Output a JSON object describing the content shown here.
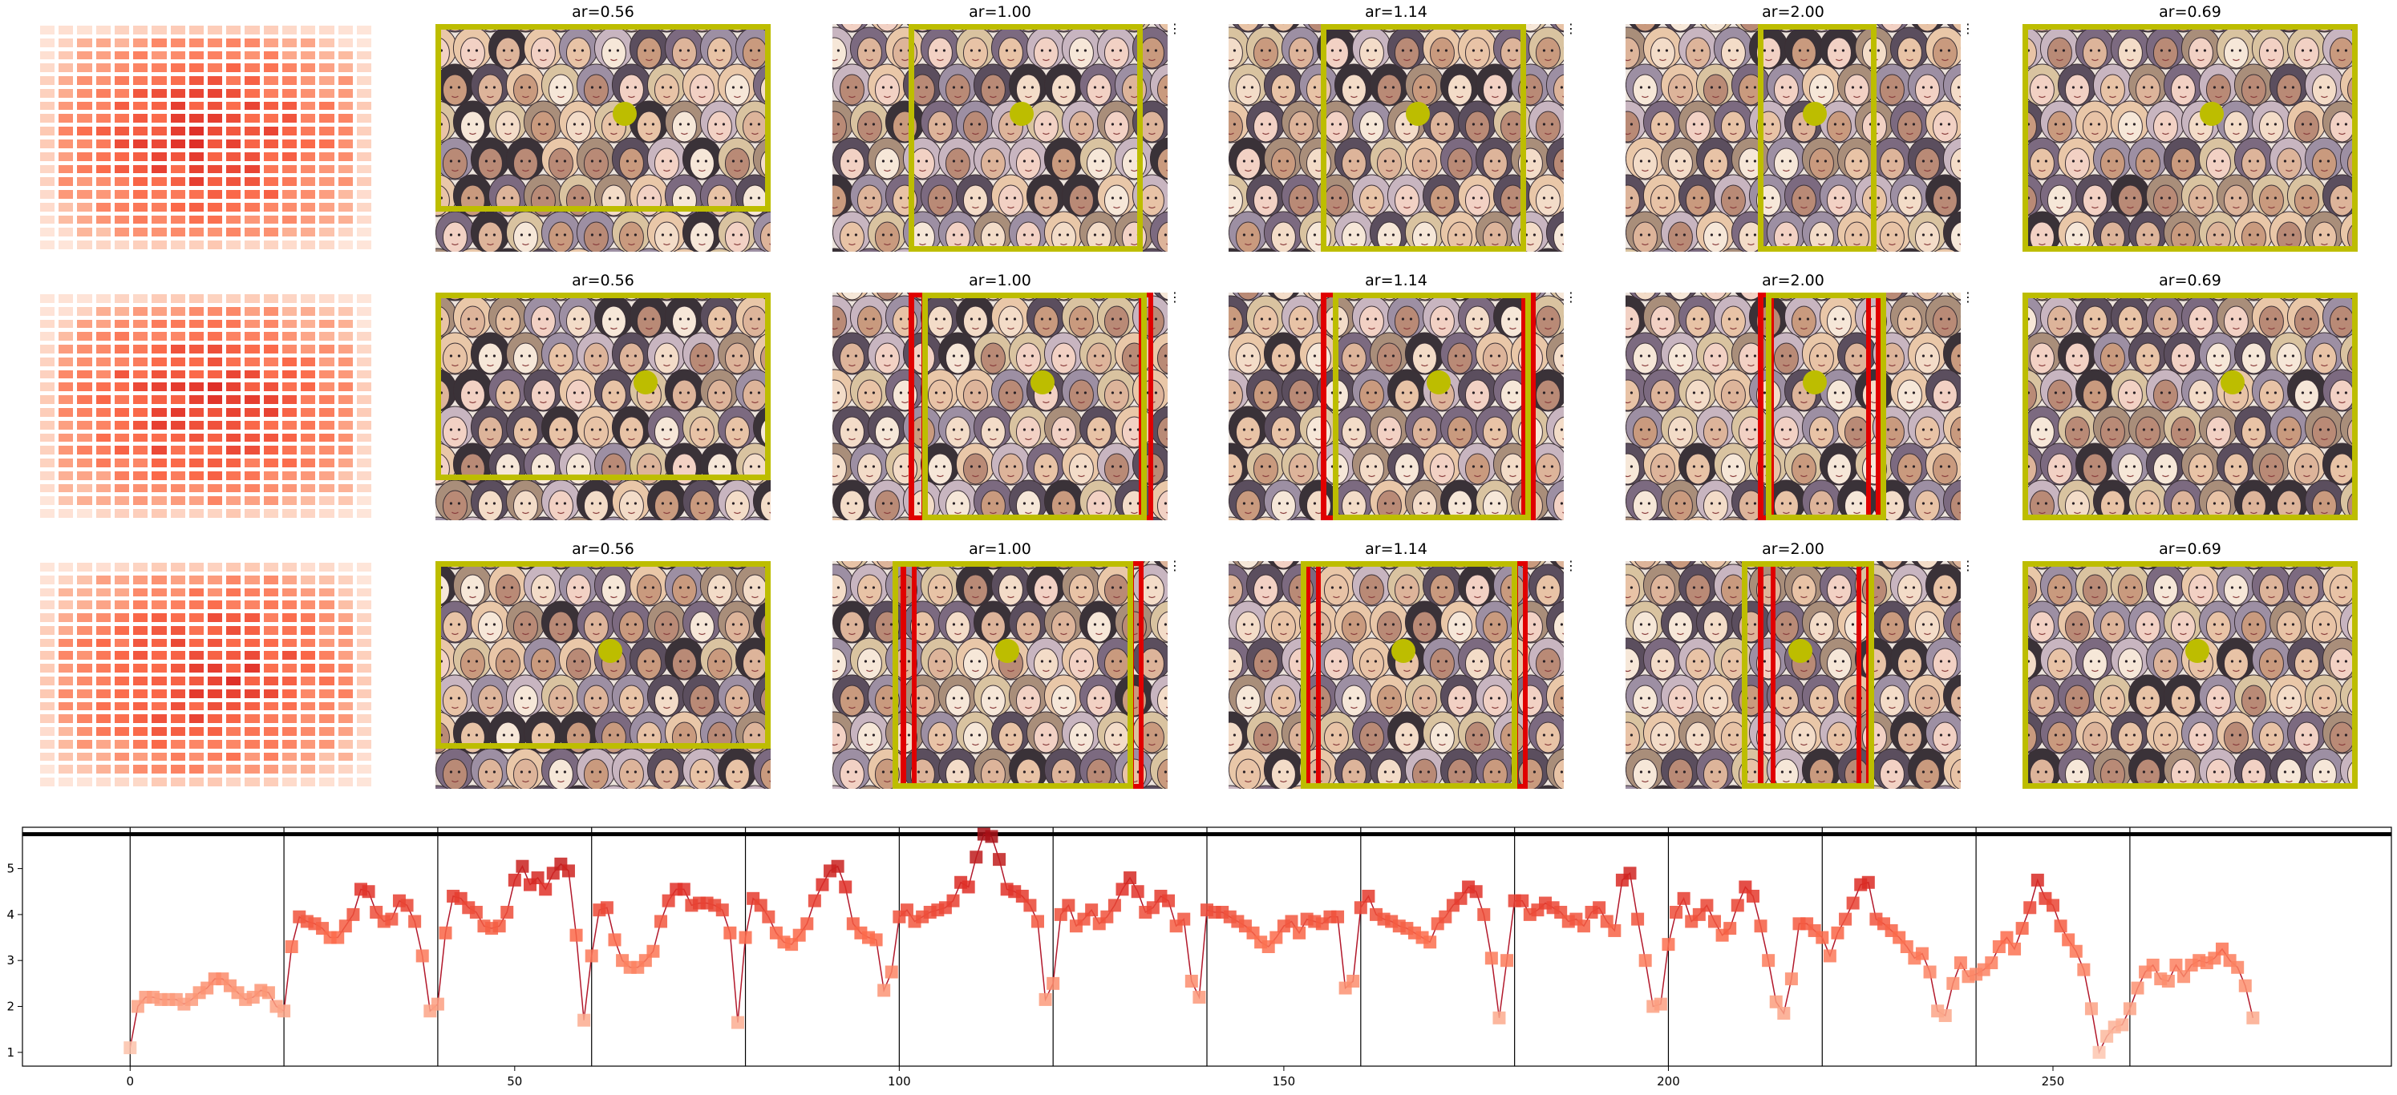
{
  "grid": {
    "rows": [
      {
        "heatmap_icon": "attention-grid",
        "panels": [
          {
            "title": "ar=0.56",
            "boxes": [
              {
                "color": "#bdbd00",
                "role": "crop"
              }
            ]
          },
          {
            "title": "ar=1.00",
            "boxes": [
              {
                "color": "#bdbd00",
                "role": "crop"
              }
            ]
          },
          {
            "title": "ar=1.14",
            "boxes": [
              {
                "color": "#bdbd00",
                "role": "crop"
              }
            ]
          },
          {
            "title": "ar=2.00",
            "boxes": [
              {
                "color": "#bdbd00",
                "role": "crop"
              }
            ]
          },
          {
            "title": "ar=0.69",
            "boxes": [
              {
                "color": "#bdbd00",
                "role": "crop"
              }
            ]
          }
        ]
      },
      {
        "heatmap_icon": "attention-grid",
        "panels": [
          {
            "title": "ar=0.56",
            "boxes": [
              {
                "color": "#bdbd00",
                "role": "crop"
              }
            ]
          },
          {
            "title": "ar=1.00",
            "boxes": [
              {
                "color": "#e00000",
                "role": "reference"
              },
              {
                "color": "#bdbd00",
                "role": "crop"
              }
            ]
          },
          {
            "title": "ar=1.14",
            "boxes": [
              {
                "color": "#e00000",
                "role": "reference"
              },
              {
                "color": "#bdbd00",
                "role": "crop"
              }
            ]
          },
          {
            "title": "ar=2.00",
            "boxes": [
              {
                "color": "#e00000",
                "role": "reference"
              },
              {
                "color": "#bdbd00",
                "role": "crop"
              }
            ]
          },
          {
            "title": "ar=0.69",
            "boxes": [
              {
                "color": "#bdbd00",
                "role": "crop"
              }
            ]
          }
        ]
      },
      {
        "heatmap_icon": "attention-grid",
        "panels": [
          {
            "title": "ar=0.56",
            "boxes": [
              {
                "color": "#bdbd00",
                "role": "crop"
              }
            ]
          },
          {
            "title": "ar=1.00",
            "boxes": [
              {
                "color": "#e00000",
                "role": "reference"
              },
              {
                "color": "#bdbd00",
                "role": "crop"
              }
            ]
          },
          {
            "title": "ar=1.14",
            "boxes": [
              {
                "color": "#e00000",
                "role": "reference"
              },
              {
                "color": "#bdbd00",
                "role": "crop"
              }
            ]
          },
          {
            "title": "ar=2.00",
            "boxes": [
              {
                "color": "#e00000",
                "role": "reference"
              },
              {
                "color": "#bdbd00",
                "role": "crop"
              }
            ]
          },
          {
            "title": "ar=0.69",
            "boxes": [
              {
                "color": "#bdbd00",
                "role": "crop"
              }
            ]
          }
        ]
      }
    ],
    "kebab_glyph": "⋮",
    "colors": {
      "crop": "#bdbd00",
      "reference": "#e00000",
      "marker": "#bdbd00"
    }
  },
  "chart_data": {
    "type": "line",
    "xlabel": "",
    "ylabel": "",
    "xlim": [
      -14,
      294
    ],
    "ylim": [
      0.7,
      5.9
    ],
    "xticks": [
      0,
      50,
      100,
      150,
      200,
      250
    ],
    "yticks": [
      1,
      2,
      3,
      4,
      5
    ],
    "separators": [
      0,
      20,
      40,
      60,
      80,
      100,
      120,
      140,
      160,
      180,
      200,
      220,
      240,
      260
    ],
    "reference_line": 5.75,
    "grid": false,
    "color_map": "reds",
    "series": [
      {
        "values": [
          1.1,
          2.0,
          2.2,
          2.2,
          2.15,
          2.15,
          2.15,
          2.05,
          2.15,
          2.3,
          2.4,
          2.6,
          2.6,
          2.45,
          2.3,
          2.15,
          2.2,
          2.35,
          2.3,
          2.0,
          1.9,
          3.3,
          3.95,
          3.85,
          3.8,
          3.7,
          3.5,
          3.5,
          3.75,
          4.0,
          4.55,
          4.5,
          4.05,
          3.85,
          3.9,
          4.3,
          4.2,
          3.85,
          3.1,
          1.9,
          2.05,
          3.6,
          4.4,
          4.35,
          4.15,
          4.05,
          3.75,
          3.7,
          3.75,
          4.05,
          4.75,
          5.05,
          4.65,
          4.8,
          4.55,
          4.9,
          5.1,
          4.95,
          3.55,
          1.7,
          3.1,
          4.1,
          4.15,
          3.45,
          3.0,
          2.85,
          2.85,
          3.0,
          3.2,
          3.85,
          4.3,
          4.55,
          4.55,
          4.2,
          4.25,
          4.25,
          4.2,
          4.1,
          3.6,
          1.65,
          3.5,
          4.35,
          4.2,
          3.95,
          3.6,
          3.4,
          3.35,
          3.55,
          3.8,
          4.3,
          4.65,
          4.95,
          5.05,
          4.6,
          3.8,
          3.6,
          3.5,
          3.45,
          2.35,
          2.75,
          3.95,
          4.1,
          3.85,
          3.95,
          4.05,
          4.1,
          4.15,
          4.3,
          4.7,
          4.6,
          5.25,
          5.75,
          5.7,
          5.2,
          4.55,
          4.5,
          4.4,
          4.2,
          3.85,
          2.15,
          2.5,
          4.0,
          4.2,
          3.75,
          3.9,
          4.1,
          3.8,
          3.95,
          4.2,
          4.55,
          4.8,
          4.5,
          4.05,
          4.15,
          4.4,
          4.3,
          3.75,
          3.9,
          2.55,
          2.2,
          4.1,
          4.05,
          4.05,
          3.95,
          3.85,
          3.75,
          3.6,
          3.4,
          3.3,
          3.5,
          3.75,
          3.85,
          3.6,
          3.9,
          3.85,
          3.8,
          3.95,
          3.95,
          2.4,
          2.55,
          4.15,
          4.4,
          4.0,
          3.9,
          3.85,
          3.75,
          3.7,
          3.6,
          3.5,
          3.4,
          3.8,
          3.95,
          4.2,
          4.35,
          4.6,
          4.5,
          4.0,
          3.05,
          1.75,
          3.0,
          4.3,
          4.3,
          4.0,
          4.1,
          4.25,
          4.15,
          4.05,
          3.85,
          3.9,
          3.75,
          4.05,
          4.15,
          3.85,
          3.65,
          4.75,
          4.9,
          3.9,
          3.0,
          2.0,
          2.05,
          3.35,
          4.05,
          4.35,
          3.85,
          4.0,
          4.2,
          3.85,
          3.55,
          3.7,
          4.2,
          4.6,
          4.4,
          3.75,
          3.0,
          2.1,
          1.85,
          2.6,
          3.8,
          3.8,
          3.65,
          3.5,
          3.1,
          3.6,
          3.9,
          4.25,
          4.65,
          4.7,
          3.9,
          3.8,
          3.65,
          3.5,
          3.3,
          3.05,
          3.15,
          2.75,
          1.9,
          1.8,
          2.5,
          2.95,
          2.65,
          2.7,
          2.8,
          2.95,
          3.3,
          3.5,
          3.25,
          3.7,
          4.15,
          4.75,
          4.35,
          4.2,
          3.75,
          3.45,
          3.2,
          2.8,
          1.95,
          1.0,
          1.35,
          1.55,
          1.6,
          1.95,
          2.4,
          2.75,
          2.9,
          2.6,
          2.55,
          2.9,
          2.65,
          2.9,
          3.0,
          2.95,
          3.05,
          3.25,
          3.0,
          2.85,
          2.45,
          1.75
        ]
      }
    ]
  }
}
